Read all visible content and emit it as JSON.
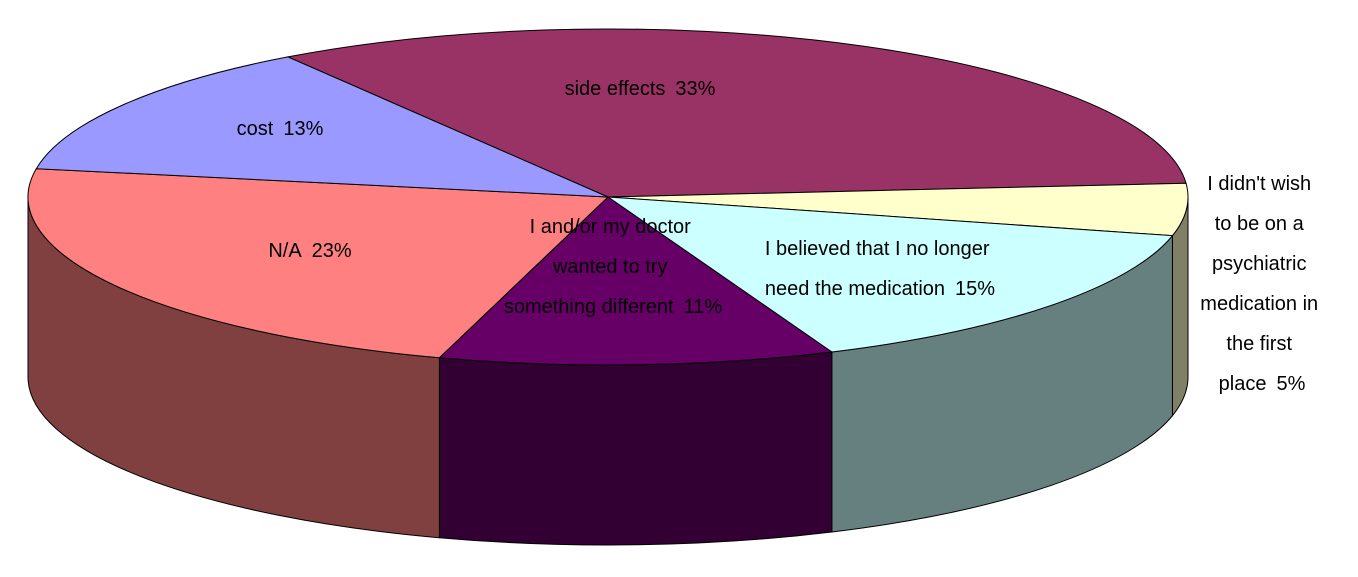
{
  "chart_data": {
    "type": "pie3d",
    "categories": [
      "side effects",
      "I didn't wish to be on a psychiatric medication in the first place",
      "I believed that I no longer need the medication",
      "I and/or my doctor wanted to try something different",
      "N/A",
      "cost"
    ],
    "values": [
      33,
      5,
      15,
      11,
      23,
      13
    ],
    "value_labels": [
      "33%",
      "5%",
      "15%",
      "11%",
      "23%",
      "13%"
    ],
    "colors": [
      "#993366",
      "#FFFFCC",
      "#CCFFFF",
      "#660066",
      "#FF8080",
      "#9999FF"
    ]
  }
}
